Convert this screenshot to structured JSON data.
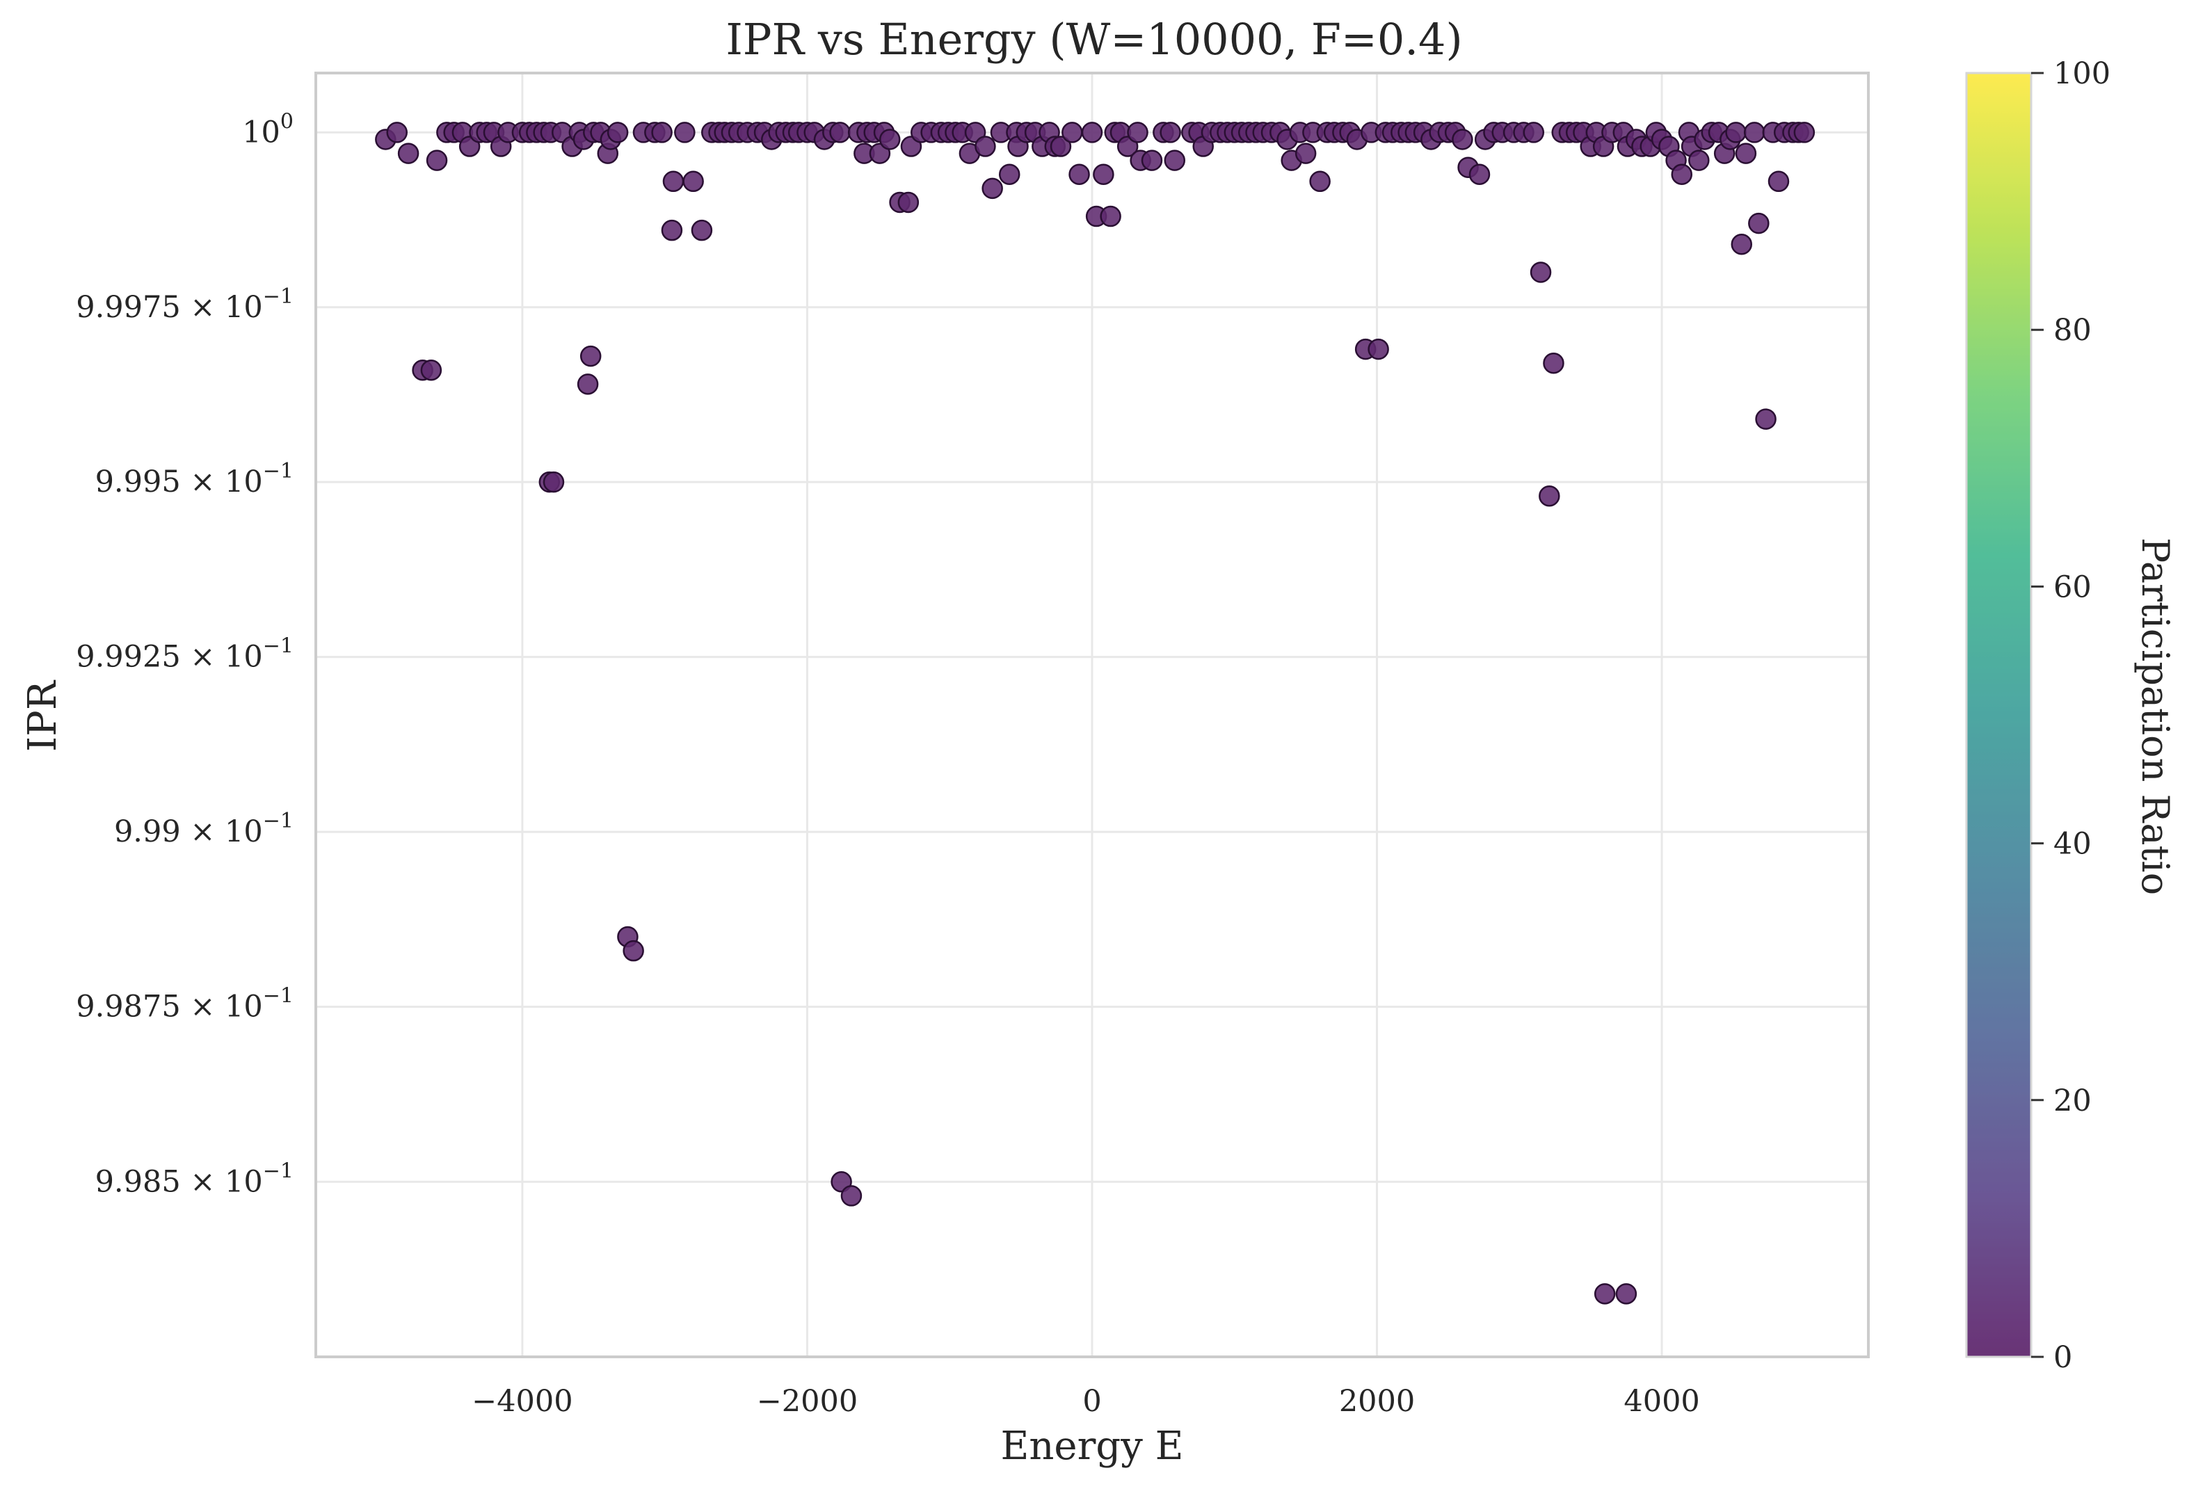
{
  "chart_data": {
    "type": "scatter",
    "title": "IPR vs Energy (W=10000, F=0.4)",
    "xlabel": "Energy E",
    "ylabel": "IPR",
    "xlim": [
      -5450,
      5450
    ],
    "ylim": [
      0.99825,
      1.000085
    ],
    "x_ticks": [
      {
        "value": -4000,
        "label": "−4000"
      },
      {
        "value": -2000,
        "label": "−2000"
      },
      {
        "value": 0,
        "label": "0"
      },
      {
        "value": 2000,
        "label": "2000"
      },
      {
        "value": 4000,
        "label": "4000"
      }
    ],
    "y_scale": "log",
    "y_ticks": [
      {
        "value": 1.0,
        "mantissa": "10",
        "exp": "0"
      },
      {
        "value": 0.99975,
        "mantissa": "9.9975 × 10",
        "exp": "−1"
      },
      {
        "value": 0.9995,
        "mantissa": "9.995 × 10",
        "exp": "−1"
      },
      {
        "value": 0.99925,
        "mantissa": "9.9925 × 10",
        "exp": "−1"
      },
      {
        "value": 0.999,
        "mantissa": "9.99 × 10",
        "exp": "−1"
      },
      {
        "value": 0.99875,
        "mantissa": "9.9875 × 10",
        "exp": "−1"
      },
      {
        "value": 0.9985,
        "mantissa": "9.985 × 10",
        "exp": "−1"
      }
    ],
    "grid": true,
    "colormap": "viridis",
    "point_color": "#5e2a6e",
    "point_edge": "#2a0f33",
    "colorbar": {
      "label": "Participation Ratio",
      "range": [
        0,
        100
      ],
      "ticks": [
        "0",
        "20",
        "40",
        "60",
        "80",
        "100"
      ],
      "tick_values": [
        0,
        20,
        40,
        60,
        80,
        100
      ]
    },
    "points": [
      {
        "x": -4960,
        "y": 0.99999
      },
      {
        "x": -4880,
        "y": 1.0
      },
      {
        "x": -4800,
        "y": 0.99997
      },
      {
        "x": -4700,
        "y": 0.99966
      },
      {
        "x": -4640,
        "y": 0.99966
      },
      {
        "x": -4600,
        "y": 0.99996
      },
      {
        "x": -4530,
        "y": 1.0
      },
      {
        "x": -4480,
        "y": 1.0
      },
      {
        "x": -4420,
        "y": 1.0
      },
      {
        "x": -4370,
        "y": 0.99998
      },
      {
        "x": -4300,
        "y": 1.0
      },
      {
        "x": -4250,
        "y": 1.0
      },
      {
        "x": -4200,
        "y": 1.0
      },
      {
        "x": -4150,
        "y": 0.99998
      },
      {
        "x": -4100,
        "y": 1.0
      },
      {
        "x": -4000,
        "y": 1.0
      },
      {
        "x": -3950,
        "y": 1.0
      },
      {
        "x": -3900,
        "y": 1.0
      },
      {
        "x": -3850,
        "y": 1.0
      },
      {
        "x": -3800,
        "y": 1.0
      },
      {
        "x": -3810,
        "y": 0.9995
      },
      {
        "x": -3780,
        "y": 0.9995
      },
      {
        "x": -3720,
        "y": 1.0
      },
      {
        "x": -3650,
        "y": 0.99998
      },
      {
        "x": -3600,
        "y": 1.0
      },
      {
        "x": -3570,
        "y": 0.99999
      },
      {
        "x": -3540,
        "y": 0.99964
      },
      {
        "x": -3520,
        "y": 0.99968
      },
      {
        "x": -3500,
        "y": 1.0
      },
      {
        "x": -3450,
        "y": 1.0
      },
      {
        "x": -3400,
        "y": 0.99997
      },
      {
        "x": -3380,
        "y": 0.99999
      },
      {
        "x": -3330,
        "y": 1.0
      },
      {
        "x": -3260,
        "y": 0.99885
      },
      {
        "x": -3220,
        "y": 0.99883
      },
      {
        "x": -3150,
        "y": 1.0
      },
      {
        "x": -3070,
        "y": 1.0
      },
      {
        "x": -3020,
        "y": 1.0
      },
      {
        "x": -2950,
        "y": 0.99986
      },
      {
        "x": -2940,
        "y": 0.99993
      },
      {
        "x": -2860,
        "y": 1.0
      },
      {
        "x": -2800,
        "y": 0.99993
      },
      {
        "x": -2740,
        "y": 0.99986
      },
      {
        "x": -2670,
        "y": 1.0
      },
      {
        "x": -2620,
        "y": 1.0
      },
      {
        "x": -2580,
        "y": 1.0
      },
      {
        "x": -2530,
        "y": 1.0
      },
      {
        "x": -2480,
        "y": 1.0
      },
      {
        "x": -2420,
        "y": 1.0
      },
      {
        "x": -2350,
        "y": 1.0
      },
      {
        "x": -2300,
        "y": 1.0
      },
      {
        "x": -2250,
        "y": 0.99999
      },
      {
        "x": -2200,
        "y": 1.0
      },
      {
        "x": -2150,
        "y": 1.0
      },
      {
        "x": -2100,
        "y": 1.0
      },
      {
        "x": -2060,
        "y": 1.0
      },
      {
        "x": -2000,
        "y": 1.0
      },
      {
        "x": -1950,
        "y": 1.0
      },
      {
        "x": -1880,
        "y": 0.99999
      },
      {
        "x": -1820,
        "y": 1.0
      },
      {
        "x": -1770,
        "y": 1.0
      },
      {
        "x": -1760,
        "y": 0.9985
      },
      {
        "x": -1690,
        "y": 0.99848
      },
      {
        "x": -1640,
        "y": 1.0
      },
      {
        "x": -1600,
        "y": 0.99997
      },
      {
        "x": -1580,
        "y": 1.0
      },
      {
        "x": -1530,
        "y": 1.0
      },
      {
        "x": -1490,
        "y": 0.99997
      },
      {
        "x": -1460,
        "y": 1.0
      },
      {
        "x": -1420,
        "y": 0.99999
      },
      {
        "x": -1350,
        "y": 0.9999
      },
      {
        "x": -1290,
        "y": 0.9999
      },
      {
        "x": -1270,
        "y": 0.99998
      },
      {
        "x": -1200,
        "y": 1.0
      },
      {
        "x": -1130,
        "y": 1.0
      },
      {
        "x": -1060,
        "y": 1.0
      },
      {
        "x": -1010,
        "y": 1.0
      },
      {
        "x": -960,
        "y": 1.0
      },
      {
        "x": -910,
        "y": 1.0
      },
      {
        "x": -860,
        "y": 0.99997
      },
      {
        "x": -820,
        "y": 1.0
      },
      {
        "x": -750,
        "y": 0.99998
      },
      {
        "x": -700,
        "y": 0.99992
      },
      {
        "x": -640,
        "y": 1.0
      },
      {
        "x": -580,
        "y": 0.99994
      },
      {
        "x": -530,
        "y": 1.0
      },
      {
        "x": -520,
        "y": 0.99998
      },
      {
        "x": -460,
        "y": 1.0
      },
      {
        "x": -400,
        "y": 1.0
      },
      {
        "x": -350,
        "y": 0.99998
      },
      {
        "x": -300,
        "y": 1.0
      },
      {
        "x": -260,
        "y": 0.99998
      },
      {
        "x": -220,
        "y": 0.99998
      },
      {
        "x": -140,
        "y": 1.0
      },
      {
        "x": -90,
        "y": 0.99994
      },
      {
        "x": 0,
        "y": 1.0
      },
      {
        "x": 30,
        "y": 0.99988
      },
      {
        "x": 80,
        "y": 0.99994
      },
      {
        "x": 130,
        "y": 0.99988
      },
      {
        "x": 160,
        "y": 1.0
      },
      {
        "x": 200,
        "y": 1.0
      },
      {
        "x": 250,
        "y": 0.99998
      },
      {
        "x": 320,
        "y": 1.0
      },
      {
        "x": 340,
        "y": 0.99996
      },
      {
        "x": 420,
        "y": 0.99996
      },
      {
        "x": 500,
        "y": 1.0
      },
      {
        "x": 550,
        "y": 1.0
      },
      {
        "x": 580,
        "y": 0.99996
      },
      {
        "x": 700,
        "y": 1.0
      },
      {
        "x": 750,
        "y": 1.0
      },
      {
        "x": 780,
        "y": 0.99998
      },
      {
        "x": 840,
        "y": 1.0
      },
      {
        "x": 900,
        "y": 1.0
      },
      {
        "x": 950,
        "y": 1.0
      },
      {
        "x": 1000,
        "y": 1.0
      },
      {
        "x": 1050,
        "y": 1.0
      },
      {
        "x": 1100,
        "y": 1.0
      },
      {
        "x": 1150,
        "y": 1.0
      },
      {
        "x": 1200,
        "y": 1.0
      },
      {
        "x": 1260,
        "y": 1.0
      },
      {
        "x": 1320,
        "y": 1.0
      },
      {
        "x": 1370,
        "y": 0.99999
      },
      {
        "x": 1400,
        "y": 0.99996
      },
      {
        "x": 1460,
        "y": 1.0
      },
      {
        "x": 1500,
        "y": 0.99997
      },
      {
        "x": 1550,
        "y": 1.0
      },
      {
        "x": 1600,
        "y": 0.99993
      },
      {
        "x": 1650,
        "y": 1.0
      },
      {
        "x": 1700,
        "y": 1.0
      },
      {
        "x": 1760,
        "y": 1.0
      },
      {
        "x": 1810,
        "y": 1.0
      },
      {
        "x": 1860,
        "y": 0.99999
      },
      {
        "x": 1920,
        "y": 0.99969
      },
      {
        "x": 1960,
        "y": 1.0
      },
      {
        "x": 2010,
        "y": 0.99969
      },
      {
        "x": 2060,
        "y": 1.0
      },
      {
        "x": 2110,
        "y": 1.0
      },
      {
        "x": 2170,
        "y": 1.0
      },
      {
        "x": 2220,
        "y": 1.0
      },
      {
        "x": 2270,
        "y": 1.0
      },
      {
        "x": 2330,
        "y": 1.0
      },
      {
        "x": 2380,
        "y": 0.99999
      },
      {
        "x": 2440,
        "y": 1.0
      },
      {
        "x": 2500,
        "y": 1.0
      },
      {
        "x": 2550,
        "y": 1.0
      },
      {
        "x": 2600,
        "y": 0.99999
      },
      {
        "x": 2640,
        "y": 0.99995
      },
      {
        "x": 2720,
        "y": 0.99994
      },
      {
        "x": 2760,
        "y": 0.99999
      },
      {
        "x": 2820,
        "y": 1.0
      },
      {
        "x": 2880,
        "y": 1.0
      },
      {
        "x": 2960,
        "y": 1.0
      },
      {
        "x": 3030,
        "y": 1.0
      },
      {
        "x": 3100,
        "y": 1.0
      },
      {
        "x": 3150,
        "y": 0.9998
      },
      {
        "x": 3210,
        "y": 0.99948
      },
      {
        "x": 3240,
        "y": 0.99967
      },
      {
        "x": 3300,
        "y": 1.0
      },
      {
        "x": 3350,
        "y": 1.0
      },
      {
        "x": 3400,
        "y": 1.0
      },
      {
        "x": 3450,
        "y": 1.0
      },
      {
        "x": 3500,
        "y": 0.99998
      },
      {
        "x": 3540,
        "y": 1.0
      },
      {
        "x": 3590,
        "y": 0.99998
      },
      {
        "x": 3600,
        "y": 0.99834
      },
      {
        "x": 3650,
        "y": 1.0
      },
      {
        "x": 3730,
        "y": 1.0
      },
      {
        "x": 3760,
        "y": 0.99998
      },
      {
        "x": 3750,
        "y": 0.99834
      },
      {
        "x": 3820,
        "y": 0.99999
      },
      {
        "x": 3860,
        "y": 0.99998
      },
      {
        "x": 3920,
        "y": 0.99998
      },
      {
        "x": 3960,
        "y": 1.0
      },
      {
        "x": 4000,
        "y": 0.99999
      },
      {
        "x": 4050,
        "y": 0.99998
      },
      {
        "x": 4100,
        "y": 0.99996
      },
      {
        "x": 4140,
        "y": 0.99994
      },
      {
        "x": 4190,
        "y": 1.0
      },
      {
        "x": 4210,
        "y": 0.99998
      },
      {
        "x": 4260,
        "y": 0.99996
      },
      {
        "x": 4300,
        "y": 0.99999
      },
      {
        "x": 4350,
        "y": 1.0
      },
      {
        "x": 4400,
        "y": 1.0
      },
      {
        "x": 4440,
        "y": 0.99997
      },
      {
        "x": 4480,
        "y": 0.99999
      },
      {
        "x": 4520,
        "y": 1.0
      },
      {
        "x": 4560,
        "y": 0.99984
      },
      {
        "x": 4590,
        "y": 0.99997
      },
      {
        "x": 4650,
        "y": 1.0
      },
      {
        "x": 4680,
        "y": 0.99987
      },
      {
        "x": 4730,
        "y": 0.99959
      },
      {
        "x": 4780,
        "y": 1.0
      },
      {
        "x": 4820,
        "y": 0.99993
      },
      {
        "x": 4860,
        "y": 1.0
      },
      {
        "x": 4920,
        "y": 1.0
      },
      {
        "x": 4960,
        "y": 1.0
      },
      {
        "x": 5000,
        "y": 1.0
      }
    ]
  }
}
